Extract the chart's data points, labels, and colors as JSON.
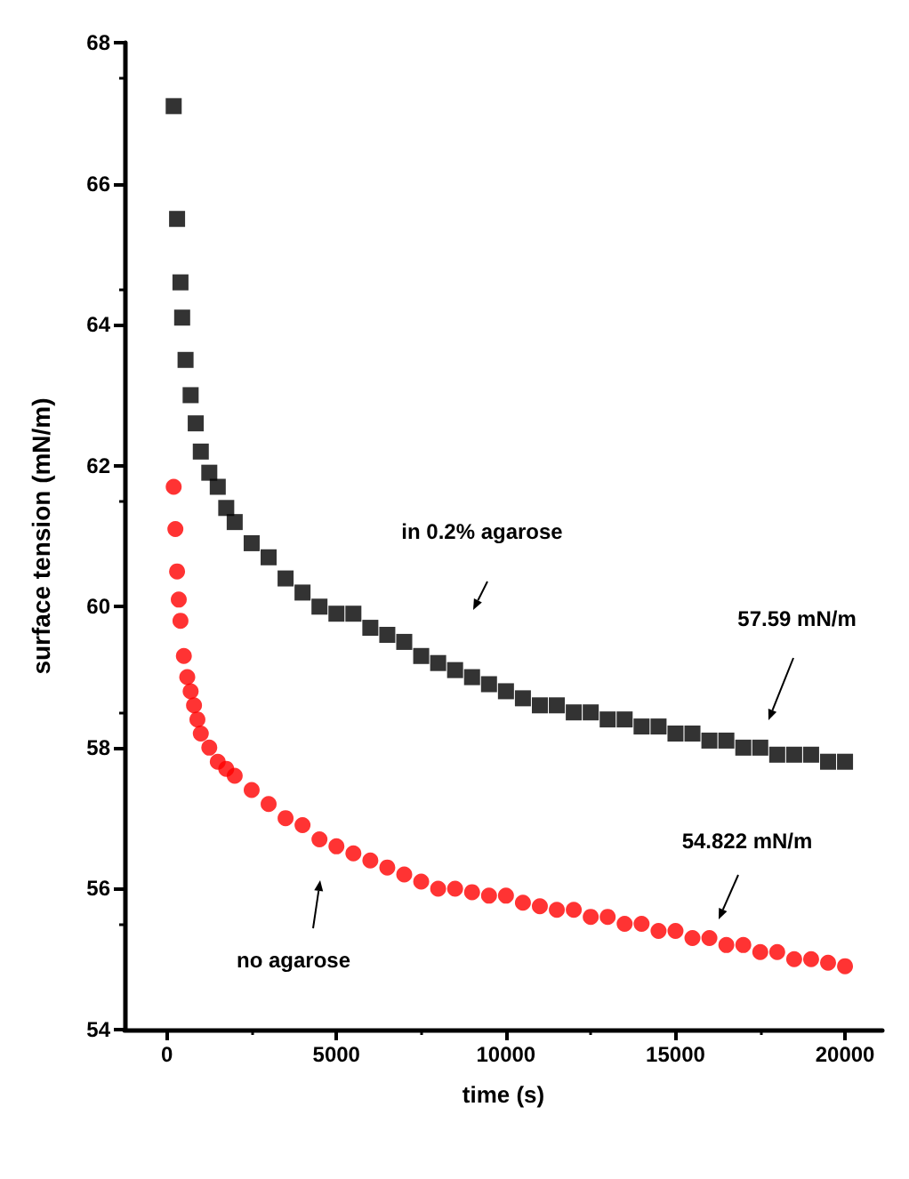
{
  "chart_data": {
    "type": "scatter",
    "xlabel": "time (s)",
    "ylabel": "surface tension (mN/m)",
    "xlim": [
      -1250,
      21100
    ],
    "xticks": [
      0,
      5000,
      10000,
      15000,
      20000
    ],
    "ylim": [
      54,
      68
    ],
    "yticks": [
      54,
      56,
      58,
      60,
      62,
      64,
      66,
      68
    ],
    "grid": false,
    "series": [
      {
        "color": "#000000",
        "marker": "square",
        "x": [
          200,
          300,
          400,
          450,
          550,
          700,
          850,
          1000,
          1250,
          1500,
          1750,
          2000,
          2500,
          3000,
          3500,
          4000,
          4500,
          5000,
          5500,
          6000,
          6500,
          7000,
          7500,
          8000,
          8500,
          9000,
          9500,
          10000,
          10500,
          11000,
          11500,
          12000,
          12500,
          13000,
          13500,
          14000,
          14500,
          15000,
          15500,
          16000,
          16500,
          17000,
          17500,
          18000,
          18500,
          19000,
          19500,
          20000
        ],
        "values": [
          67.1,
          65.5,
          64.6,
          64.1,
          63.5,
          63.0,
          62.6,
          62.2,
          61.9,
          61.7,
          61.4,
          61.2,
          60.9,
          60.7,
          60.4,
          60.2,
          60.0,
          59.9,
          59.9,
          59.7,
          59.6,
          59.5,
          59.3,
          59.2,
          59.1,
          59.0,
          58.9,
          58.8,
          58.7,
          58.6,
          58.6,
          58.5,
          58.5,
          58.4,
          58.4,
          58.3,
          58.3,
          58.2,
          58.2,
          58.1,
          58.1,
          58.0,
          58.0,
          57.9,
          57.9,
          57.9,
          57.8,
          57.8
        ]
      },
      {
        "color": "#ff0000",
        "marker": "circle",
        "x": [
          200,
          250,
          300,
          350,
          400,
          500,
          600,
          700,
          800,
          900,
          1000,
          1250,
          1500,
          1750,
          2000,
          2500,
          3000,
          3500,
          4000,
          4500,
          5000,
          5500,
          6000,
          6500,
          7000,
          7500,
          8000,
          8500,
          9000,
          9500,
          10000,
          10500,
          11000,
          11500,
          12000,
          12500,
          13000,
          13500,
          14000,
          14500,
          15000,
          15500,
          16000,
          16500,
          17000,
          17500,
          18000,
          18500,
          19000,
          19500,
          20000
        ],
        "values": [
          61.7,
          61.1,
          60.5,
          60.1,
          59.8,
          59.3,
          59.0,
          58.8,
          58.6,
          58.4,
          58.2,
          58.0,
          57.8,
          57.7,
          57.6,
          57.4,
          57.2,
          57.0,
          56.9,
          56.7,
          56.6,
          56.5,
          56.4,
          56.3,
          56.2,
          56.1,
          56.0,
          56.0,
          55.95,
          55.9,
          55.9,
          55.8,
          55.75,
          55.7,
          55.7,
          55.6,
          55.6,
          55.5,
          55.5,
          55.4,
          55.4,
          55.3,
          55.3,
          55.2,
          55.2,
          55.1,
          55.1,
          55.0,
          55.0,
          54.95,
          54.9
        ]
      }
    ],
    "annotations": [
      "in 0.2% agarose",
      "57.59 mN/m",
      "54.822 mN/m",
      "no agarose"
    ]
  }
}
